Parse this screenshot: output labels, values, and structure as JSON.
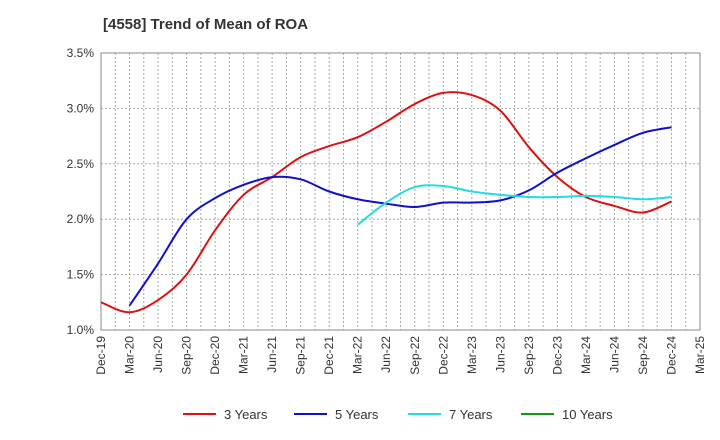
{
  "chart_data": {
    "type": "line",
    "title": "[4558]  Trend of Mean of ROA",
    "xlabel": "",
    "ylabel": "",
    "categories": [
      "Dec-19",
      "Mar-20",
      "Jun-20",
      "Sep-20",
      "Dec-20",
      "Mar-21",
      "Jun-21",
      "Sep-21",
      "Dec-21",
      "Mar-22",
      "Jun-22",
      "Sep-22",
      "Dec-22",
      "Mar-23",
      "Jun-23",
      "Sep-23",
      "Dec-23",
      "Mar-24",
      "Jun-24",
      "Sep-24",
      "Dec-24",
      "Mar-25"
    ],
    "ylim": [
      1.0,
      3.5
    ],
    "yticks": [
      1.0,
      1.5,
      2.0,
      2.5,
      3.0,
      3.5
    ],
    "ytick_labels": [
      "1.0%",
      "1.5%",
      "2.0%",
      "2.5%",
      "3.0%",
      "3.5%"
    ],
    "grid": true,
    "legend_position": "bottom",
    "series": [
      {
        "name": "3 Years",
        "color": "#dd1111",
        "values": [
          1.25,
          1.16,
          1.27,
          1.5,
          1.9,
          2.22,
          2.38,
          2.56,
          2.66,
          2.74,
          2.88,
          3.04,
          3.14,
          3.12,
          2.98,
          2.65,
          2.38,
          2.2,
          2.12,
          2.06,
          2.16,
          null
        ]
      },
      {
        "name": "5 Years",
        "color": "#1111cc",
        "values": [
          null,
          1.22,
          1.6,
          2.0,
          2.19,
          2.31,
          2.38,
          2.36,
          2.25,
          2.18,
          2.14,
          2.11,
          2.15,
          2.15,
          2.17,
          2.26,
          2.42,
          2.55,
          2.67,
          2.78,
          2.83,
          null
        ]
      },
      {
        "name": "7 Years",
        "color": "#22dddd",
        "values": [
          null,
          null,
          null,
          null,
          null,
          null,
          null,
          null,
          null,
          1.95,
          2.15,
          2.29,
          2.3,
          2.25,
          2.22,
          2.2,
          2.2,
          2.21,
          2.2,
          2.18,
          2.2,
          null
        ]
      },
      {
        "name": "10 Years",
        "color": "#119911",
        "values": [
          null,
          null,
          null,
          null,
          null,
          null,
          null,
          null,
          null,
          null,
          null,
          null,
          null,
          null,
          null,
          null,
          null,
          null,
          null,
          null,
          null,
          null
        ]
      }
    ]
  }
}
